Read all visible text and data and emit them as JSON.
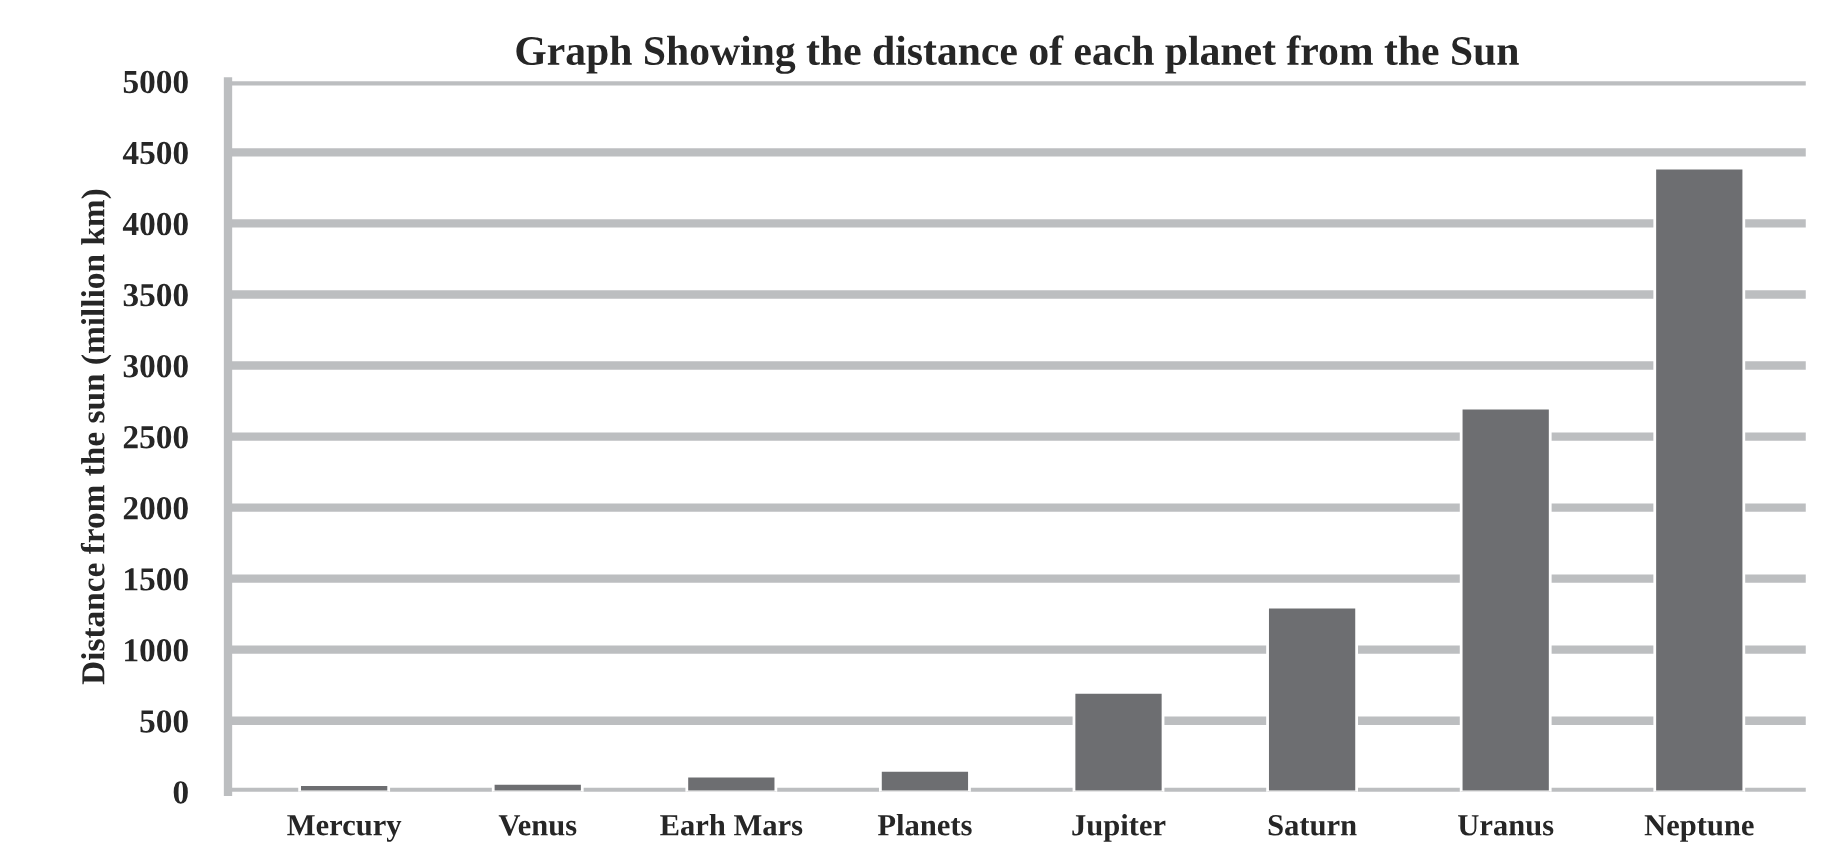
{
  "chart_data": {
    "type": "bar",
    "title": "Graph Showing the distance of each planet from the Sun",
    "ylabel": "Distance from the sun (million km)",
    "categories": [
      "Mercury",
      "Venus",
      "Earh Mars",
      "Planets",
      "Jupiter",
      "Saturn",
      "Uranus",
      "Neptune"
    ],
    "values": [
      50,
      60,
      110,
      150,
      700,
      1300,
      2700,
      4390
    ],
    "color": "#6d6e71",
    "ylim": [
      0,
      5000
    ],
    "yticks": [
      0,
      500,
      1000,
      1500,
      2000,
      2500,
      3000,
      3500,
      4000,
      4500,
      5000
    ],
    "grid": "y"
  }
}
